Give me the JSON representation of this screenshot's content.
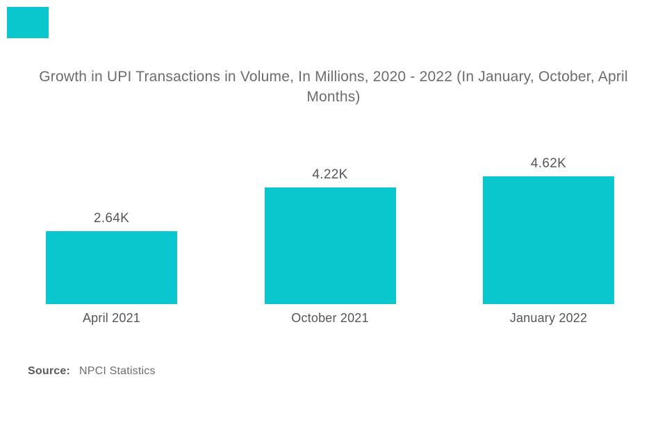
{
  "colors": {
    "accent": "#0AC7CE",
    "title_text": "#6B6C6E",
    "label_text": "#55565A",
    "source_label": "#58595B",
    "source_value": "#6D6E70"
  },
  "header": {
    "title": "Growth in UPI Transactions in Volume, In Millions, 2020 - 2022 (In January, October, April Months)"
  },
  "chart_data": {
    "type": "bar",
    "title": "Growth in UPI Transactions in Volume, In Millions, 2020 - 2022 (In January, October, April Months)",
    "unit": "Millions",
    "categories": [
      "April 2021",
      "October 2021",
      "January 2022"
    ],
    "values": [
      2640,
      4220,
      4620
    ],
    "value_labels": [
      "2.64K",
      "4.22K",
      "4.62K"
    ],
    "ylim": [
      0,
      4620
    ],
    "grid": false,
    "axes_visible": false,
    "legend": "none",
    "bar_color": "#0AC7CE"
  },
  "footer": {
    "source_label": "Source:",
    "source_value": "NPCI Statistics"
  }
}
